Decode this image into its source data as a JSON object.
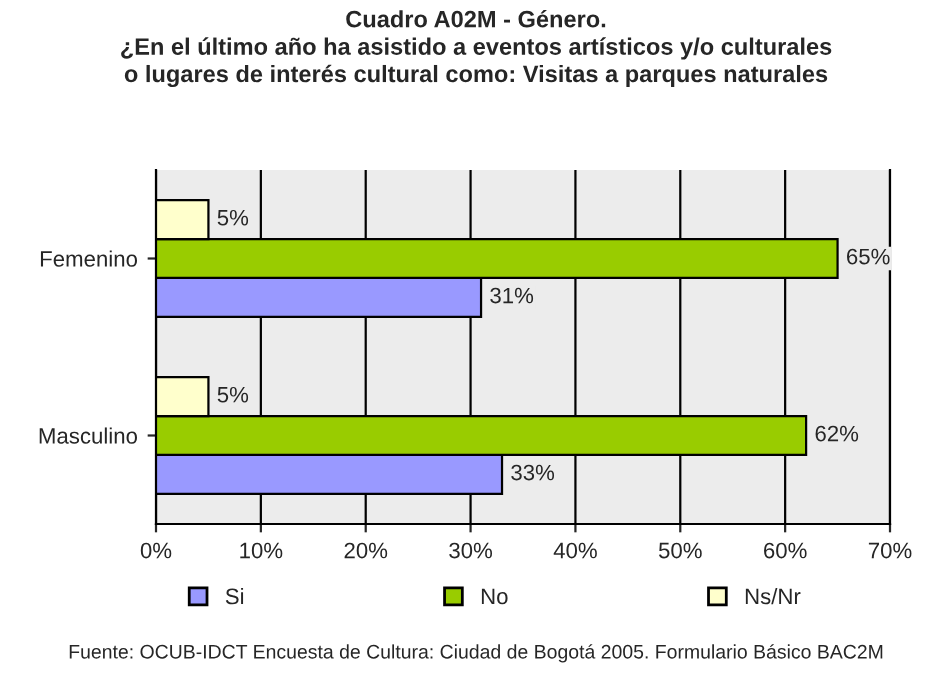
{
  "chart_data": {
    "type": "bar",
    "orientation": "horizontal",
    "title": "Cuadro A02M - Género.\n¿En el último año ha asistido a eventos artísticos y/o culturales\no lugares de interés cultural como: Visitas a parques naturales",
    "categories": [
      "Femenino",
      "Masculino"
    ],
    "series": [
      {
        "name": "Si",
        "color": "#9999ff",
        "values": [
          31,
          33
        ],
        "value_labels": [
          "31%",
          "33%"
        ]
      },
      {
        "name": "No",
        "color": "#99cc00",
        "values": [
          65,
          62
        ],
        "value_labels": [
          "65%",
          "62%"
        ]
      },
      {
        "name": "Ns/Nr",
        "color": "#ffffcc",
        "values": [
          5,
          5
        ],
        "value_labels": [
          "5%",
          "5%"
        ]
      }
    ],
    "xlim": [
      0,
      70
    ],
    "xticks": [
      {
        "value": 0,
        "label": "0%"
      },
      {
        "value": 10,
        "label": "10%"
      },
      {
        "value": 20,
        "label": "20%"
      },
      {
        "value": 30,
        "label": "30%"
      },
      {
        "value": 40,
        "label": "40%"
      },
      {
        "value": 50,
        "label": "50%"
      },
      {
        "value": 60,
        "label": "60%"
      },
      {
        "value": 70,
        "label": "70%"
      }
    ],
    "grid": "x",
    "legend": "bottom",
    "annotations": [
      "Fuente: OCUB-IDCT Encuesta de Cultura: Ciudad de Bogotá 2005. Formulario Básico BAC2M"
    ]
  }
}
